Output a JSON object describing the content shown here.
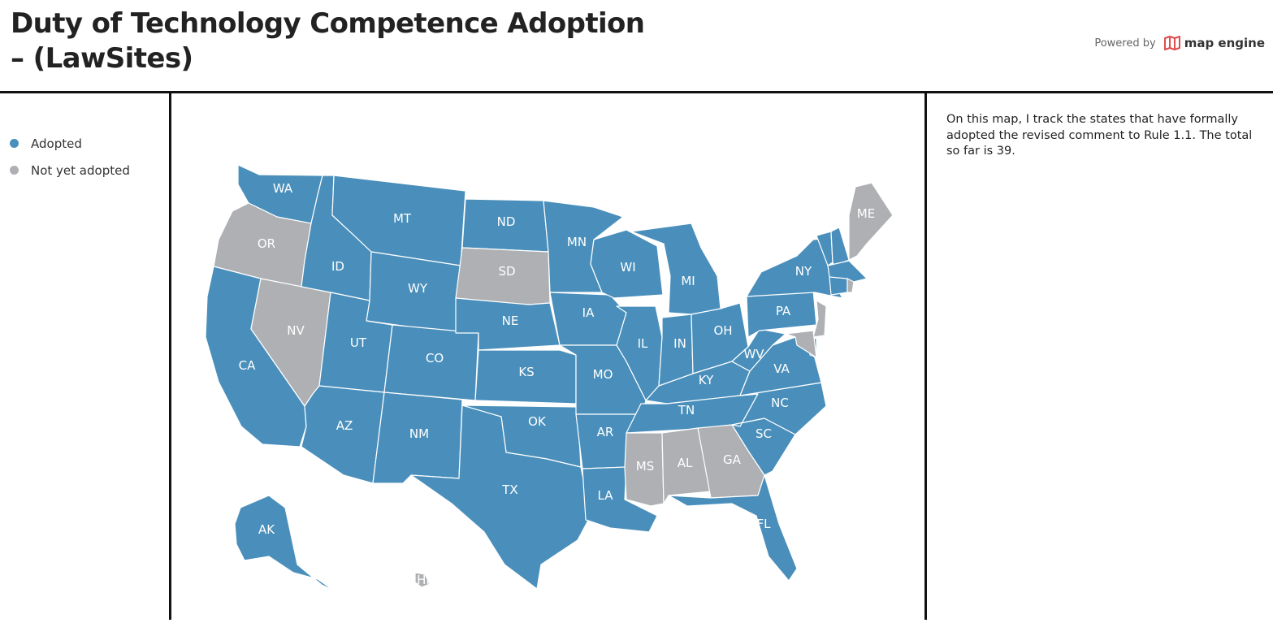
{
  "title": "Duty of Technology Competence Adoption – (LawSites)",
  "powered_by": {
    "label": "Powered by",
    "brand": "map engine"
  },
  "colors": {
    "adopted": "#4a8fbb",
    "not_adopted": "#aeb0b3",
    "brand_icon": "#e04b4b"
  },
  "legend": [
    {
      "label": "Adopted",
      "status": "adopted"
    },
    {
      "label": "Not yet adopted",
      "status": "not_adopted"
    }
  ],
  "description": "On this map, I track the states that have formally adopted the revised comment to Rule 1.1. The total so far is 39.",
  "states": [
    {
      "code": "WA",
      "status": "adopted"
    },
    {
      "code": "OR",
      "status": "not_adopted"
    },
    {
      "code": "CA",
      "status": "adopted"
    },
    {
      "code": "NV",
      "status": "not_adopted"
    },
    {
      "code": "ID",
      "status": "adopted"
    },
    {
      "code": "MT",
      "status": "adopted"
    },
    {
      "code": "WY",
      "status": "adopted"
    },
    {
      "code": "UT",
      "status": "adopted"
    },
    {
      "code": "AZ",
      "status": "adopted"
    },
    {
      "code": "CO",
      "status": "adopted"
    },
    {
      "code": "NM",
      "status": "adopted"
    },
    {
      "code": "ND",
      "status": "adopted"
    },
    {
      "code": "SD",
      "status": "not_adopted"
    },
    {
      "code": "NE",
      "status": "adopted"
    },
    {
      "code": "KS",
      "status": "adopted"
    },
    {
      "code": "OK",
      "status": "adopted"
    },
    {
      "code": "TX",
      "status": "adopted"
    },
    {
      "code": "MN",
      "status": "adopted"
    },
    {
      "code": "IA",
      "status": "adopted"
    },
    {
      "code": "MO",
      "status": "adopted"
    },
    {
      "code": "AR",
      "status": "adopted"
    },
    {
      "code": "LA",
      "status": "adopted"
    },
    {
      "code": "WI",
      "status": "adopted"
    },
    {
      "code": "IL",
      "status": "adopted"
    },
    {
      "code": "MI",
      "status": "adopted"
    },
    {
      "code": "IN",
      "status": "adopted"
    },
    {
      "code": "OH",
      "status": "adopted"
    },
    {
      "code": "KY",
      "status": "adopted"
    },
    {
      "code": "TN",
      "status": "adopted"
    },
    {
      "code": "MS",
      "status": "not_adopted"
    },
    {
      "code": "AL",
      "status": "not_adopted"
    },
    {
      "code": "GA",
      "status": "not_adopted"
    },
    {
      "code": "FL",
      "status": "adopted"
    },
    {
      "code": "SC",
      "status": "adopted"
    },
    {
      "code": "NC",
      "status": "adopted"
    },
    {
      "code": "VA",
      "status": "adopted"
    },
    {
      "code": "WV",
      "status": "adopted"
    },
    {
      "code": "PA",
      "status": "adopted"
    },
    {
      "code": "NY",
      "status": "adopted"
    },
    {
      "code": "ME",
      "status": "not_adopted"
    },
    {
      "code": "AK",
      "status": "adopted"
    },
    {
      "code": "HI",
      "status": "not_adopted"
    }
  ],
  "unlabeled_states": [
    {
      "code": "VT",
      "status": "adopted"
    },
    {
      "code": "NH",
      "status": "adopted"
    },
    {
      "code": "MA",
      "status": "adopted"
    },
    {
      "code": "CT",
      "status": "adopted"
    },
    {
      "code": "RI",
      "status": "not_adopted"
    },
    {
      "code": "NJ",
      "status": "not_adopted"
    },
    {
      "code": "DE",
      "status": "adopted"
    },
    {
      "code": "MD",
      "status": "not_adopted"
    }
  ]
}
